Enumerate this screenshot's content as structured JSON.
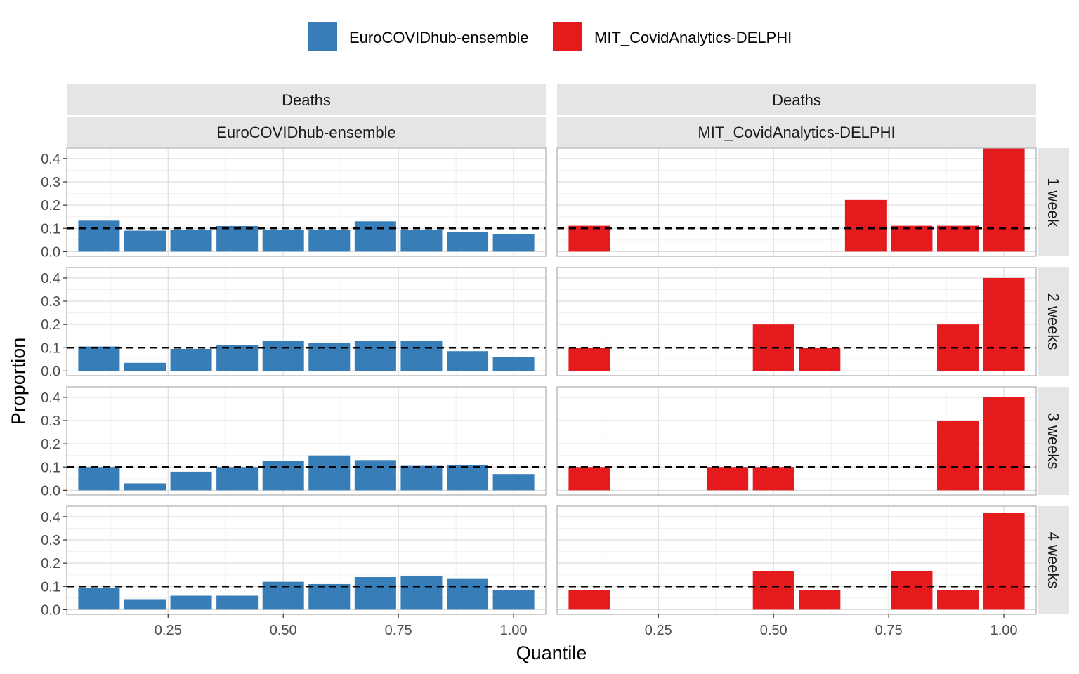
{
  "legend": {
    "items": [
      {
        "label": "EuroCOVIDhub-ensemble",
        "color": "#377EB8"
      },
      {
        "label": "MIT_CovidAnalytics-DELPHI",
        "color": "#E41A1C"
      }
    ]
  },
  "axes": {
    "xlabel": "Quantile",
    "ylabel": "Proportion",
    "x_ticks": [
      "0.25",
      "0.50",
      "0.75",
      "1.00"
    ],
    "y_ticks": [
      "0.0",
      "0.1",
      "0.2",
      "0.3",
      "0.4"
    ]
  },
  "columns": [
    {
      "strip_top": "Deaths",
      "strip_bottom": "EuroCOVIDhub-ensemble",
      "color": "#377EB8"
    },
    {
      "strip_top": "Deaths",
      "strip_bottom": "MIT_CovidAnalytics-DELPHI",
      "color": "#E41A1C"
    }
  ],
  "rows": [
    {
      "label": "1 week"
    },
    {
      "label": "2 weeks"
    },
    {
      "label": "3 weeks"
    },
    {
      "label": "4 weeks"
    }
  ],
  "chart_data": {
    "type": "bar",
    "x": [
      0.1,
      0.2,
      0.3,
      0.4,
      0.5,
      0.6,
      0.7,
      0.8,
      0.9,
      1.0
    ],
    "xlim": [
      0.03,
      1.07
    ],
    "ylim": [
      -0.02,
      0.445
    ],
    "reference_line": 0.1,
    "grid": true,
    "legend_position": "top",
    "panels": [
      {
        "model": "EuroCOVIDhub-ensemble",
        "horizon": "1 week",
        "values": [
          0.133,
          0.09,
          0.095,
          0.11,
          0.095,
          0.095,
          0.13,
          0.095,
          0.085,
          0.075
        ]
      },
      {
        "model": "MIT_CovidAnalytics-DELPHI",
        "horizon": "1 week",
        "values": [
          0.111,
          0,
          0,
          0,
          0,
          0,
          0.222,
          0.111,
          0.111,
          0.444
        ]
      },
      {
        "model": "EuroCOVIDhub-ensemble",
        "horizon": "2 weeks",
        "values": [
          0.105,
          0.035,
          0.095,
          0.11,
          0.13,
          0.12,
          0.13,
          0.13,
          0.085,
          0.06
        ]
      },
      {
        "model": "MIT_CovidAnalytics-DELPHI",
        "horizon": "2 weeks",
        "values": [
          0.1,
          0,
          0,
          0,
          0.2,
          0.1,
          0,
          0,
          0.2,
          0.4
        ]
      },
      {
        "model": "EuroCOVIDhub-ensemble",
        "horizon": "3 weeks",
        "values": [
          0.1,
          0.03,
          0.08,
          0.1,
          0.125,
          0.15,
          0.13,
          0.105,
          0.11,
          0.07
        ]
      },
      {
        "model": "MIT_CovidAnalytics-DELPHI",
        "horizon": "3 weeks",
        "values": [
          0.1,
          0,
          0,
          0.1,
          0.1,
          0,
          0,
          0,
          0.3,
          0.4
        ]
      },
      {
        "model": "EuroCOVIDhub-ensemble",
        "horizon": "4 weeks",
        "values": [
          0.095,
          0.045,
          0.06,
          0.06,
          0.12,
          0.11,
          0.14,
          0.145,
          0.135,
          0.085
        ]
      },
      {
        "model": "MIT_CovidAnalytics-DELPHI",
        "horizon": "4 weeks",
        "values": [
          0.083,
          0,
          0,
          0,
          0.167,
          0.083,
          0,
          0.167,
          0.083,
          0.417
        ]
      }
    ]
  }
}
